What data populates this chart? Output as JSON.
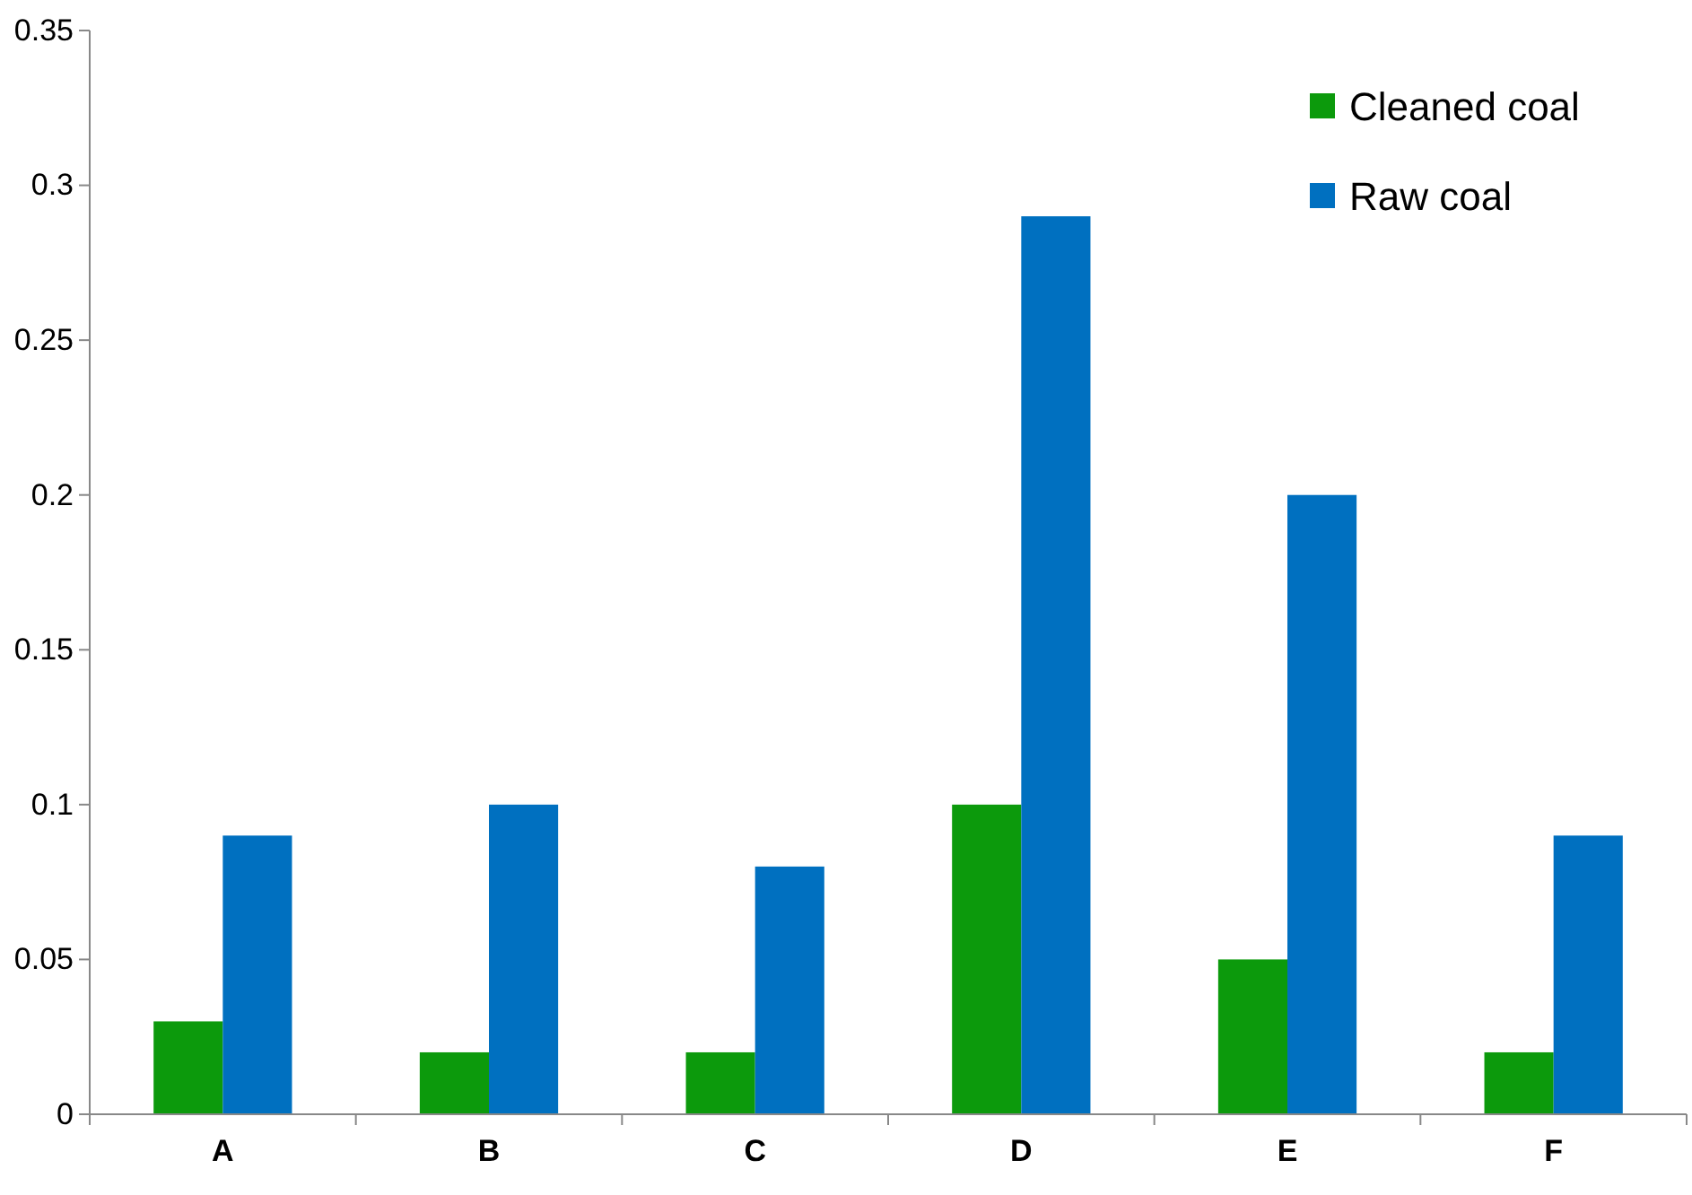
{
  "chart_data": {
    "type": "bar",
    "categories": [
      "A",
      "B",
      "C",
      "D",
      "E",
      "F"
    ],
    "series": [
      {
        "name": "Cleaned coal",
        "color": "#0c9a0c",
        "values": [
          0.03,
          0.02,
          0.02,
          0.1,
          0.05,
          0.02
        ]
      },
      {
        "name": "Raw coal",
        "color": "#0070c0",
        "values": [
          0.09,
          0.1,
          0.08,
          0.29,
          0.2,
          0.09
        ]
      }
    ],
    "ylim": [
      0,
      0.35
    ],
    "yticks": [
      0,
      {
        "value": 0.05,
        "label": "0.05"
      },
      {
        "value": 0.1,
        "label": "0.1"
      },
      {
        "value": 0.15,
        "label": "0.15"
      },
      {
        "value": 0.2,
        "label": "0.2"
      },
      {
        "value": 0.25,
        "label": "0.25"
      },
      {
        "value": 0.3,
        "label": "0.3"
      },
      {
        "value": 0.35,
        "label": "0.35"
      }
    ],
    "grid": false,
    "legend": "top right"
  }
}
